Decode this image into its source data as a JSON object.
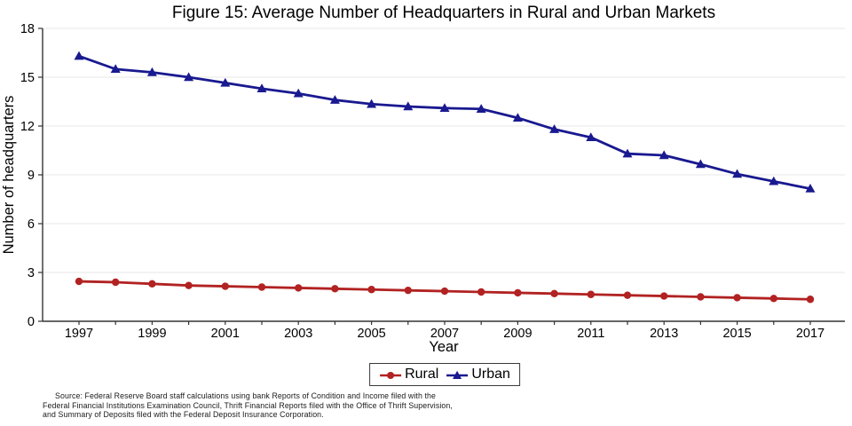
{
  "figure": {
    "source_lines": [
      "Source: Federal Reserve Board staff calculations using bank Reports of Condition and Income filed with the",
      "Federal Financial Institutions Examination Council, Thrift Financial Reports filed with the Office of Thrift Supervision,",
      "and Summary of Deposits filed with the Federal Deposit Insurance Corporation."
    ]
  },
  "chart_data": {
    "type": "line",
    "title": "Figure 15: Average Number of Headquarters in Rural and Urban Markets",
    "xlabel": "Year",
    "ylabel": "Number of headquarters",
    "x": [
      1997,
      1998,
      1999,
      2000,
      2001,
      2002,
      2003,
      2004,
      2005,
      2006,
      2007,
      2008,
      2009,
      2010,
      2011,
      2012,
      2013,
      2014,
      2015,
      2016,
      2017
    ],
    "xticks": [
      1997,
      1999,
      2001,
      2003,
      2005,
      2007,
      2009,
      2011,
      2013,
      2015,
      2017
    ],
    "yticks": [
      0,
      3,
      6,
      9,
      12,
      15,
      18
    ],
    "ylim": [
      0,
      18
    ],
    "grid": "horizontal",
    "legend_position": "bottom-center",
    "axis_color": "#333333",
    "gridline_color": "#e7e7e7",
    "series": [
      {
        "name": "Rural",
        "color": "#b22222",
        "marker": "circle",
        "values": [
          2.45,
          2.4,
          2.3,
          2.2,
          2.15,
          2.1,
          2.05,
          2.0,
          1.95,
          1.9,
          1.85,
          1.8,
          1.75,
          1.7,
          1.65,
          1.6,
          1.55,
          1.5,
          1.45,
          1.4,
          1.35
        ]
      },
      {
        "name": "Urban",
        "color": "#191990",
        "marker": "triangle",
        "values": [
          16.3,
          15.5,
          15.3,
          15.0,
          14.65,
          14.3,
          14.0,
          13.6,
          13.35,
          13.2,
          13.1,
          13.05,
          12.5,
          11.8,
          11.3,
          10.3,
          10.2,
          9.65,
          9.05,
          8.6,
          8.15
        ]
      }
    ]
  }
}
